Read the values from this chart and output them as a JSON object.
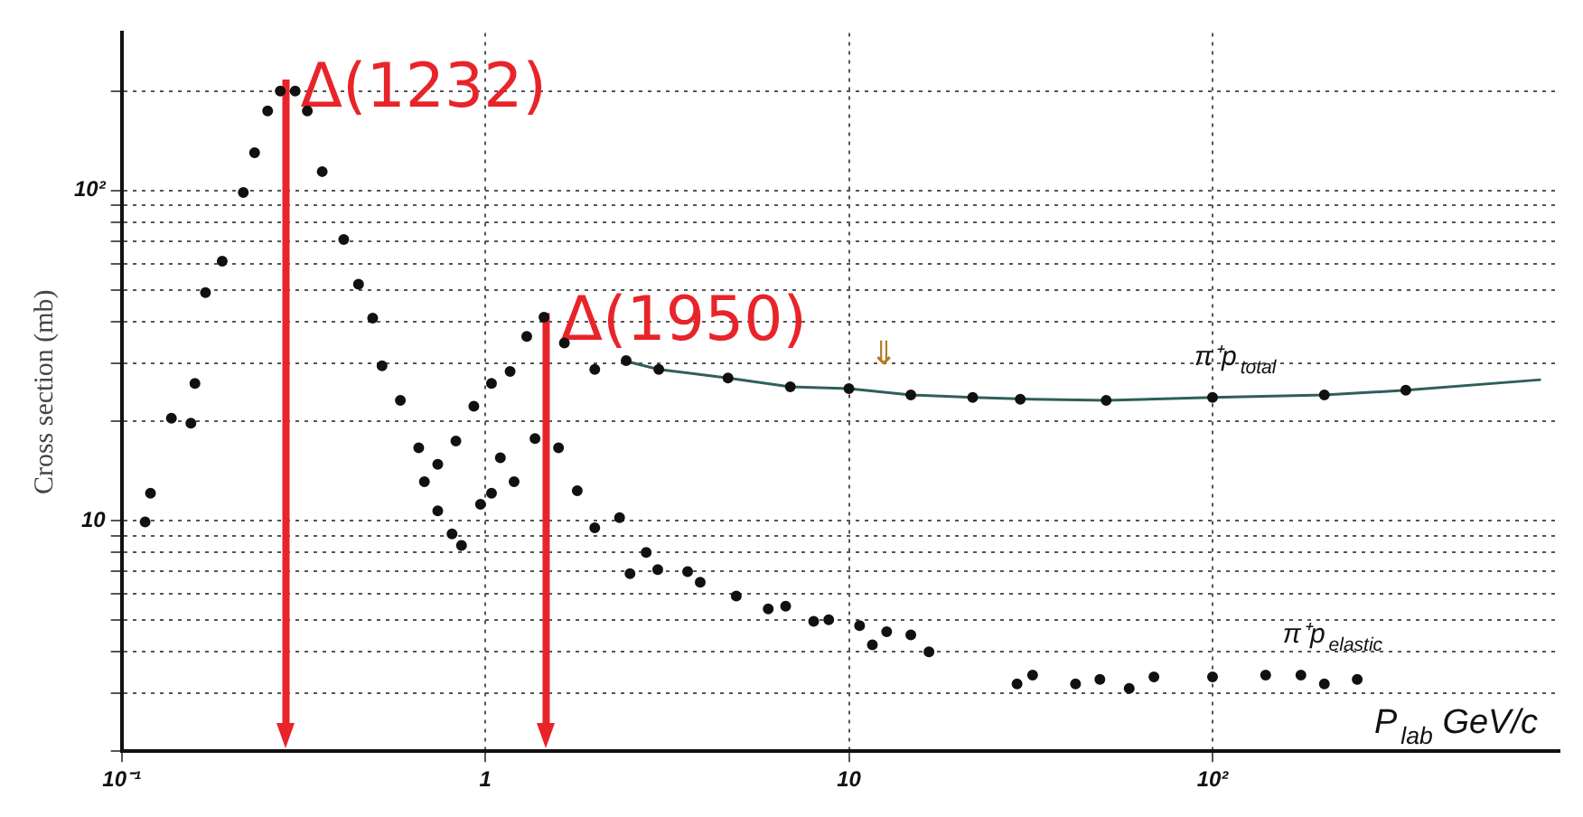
{
  "chart_data": {
    "type": "scatter",
    "ylabel": "Cross section (mb)",
    "xlabel": "P$_{lab}$ GeV/c",
    "log": "xy",
    "grid": true,
    "legend": false,
    "marker": "circle",
    "xlim": [
      0.1,
      900
    ],
    "xticks": [
      {
        "value": 0.1,
        "label": "10⁻¹"
      },
      1,
      10,
      {
        "value": 100,
        "label": "10²"
      }
    ],
    "ylim": [
      2,
      300
    ],
    "yticks": [
      {
        "value": 2,
        "label": null
      },
      {
        "value": 3,
        "label": null
      },
      {
        "value": 4,
        "label": null
      },
      {
        "value": 5,
        "label": null
      },
      {
        "value": 6,
        "label": null
      },
      {
        "value": 7,
        "label": null
      },
      {
        "value": 8,
        "label": null
      },
      {
        "value": 9,
        "label": null
      },
      10,
      {
        "value": 20,
        "label": null
      },
      {
        "value": 30,
        "label": null
      },
      {
        "value": 40,
        "label": null
      },
      {
        "value": 50,
        "label": null
      },
      {
        "value": 60,
        "label": null
      },
      {
        "value": 70,
        "label": null
      },
      {
        "value": 80,
        "label": null
      },
      {
        "value": 90,
        "label": null
      },
      {
        "value": 100,
        "label": "10²"
      },
      {
        "value": 200,
        "label": null
      }
    ],
    "series": [
      {
        "name": "π⁺p$_{total}$",
        "color": "#111111",
        "x": [
          0.116,
          0.12,
          0.137,
          0.155,
          0.159,
          0.17,
          0.189,
          0.216,
          0.232,
          0.252,
          0.273,
          0.3,
          0.324,
          0.356,
          0.408,
          0.448,
          0.49,
          0.52,
          0.584,
          0.656,
          0.74,
          0.83,
          0.93,
          1.04,
          1.17,
          1.3,
          1.45,
          1.65,
          2.0,
          2.44,
          3.0,
          4.65,
          6.9,
          10,
          14.8,
          21.9,
          29.6,
          51,
          100,
          203,
          340
        ],
        "values": [
          9.9,
          12.1,
          20.4,
          19.7,
          26,
          49,
          61,
          98.6,
          130,
          174,
          200,
          200,
          174,
          114,
          71,
          52,
          41,
          29.4,
          23.1,
          16.6,
          14.8,
          17.4,
          22.2,
          26,
          28.3,
          36.1,
          41.3,
          34.5,
          28.7,
          30.5,
          28.7,
          27.0,
          25.4,
          25.1,
          24.0,
          23.6,
          23.3,
          23.1,
          23.6,
          24,
          24.8
        ]
      },
      {
        "type": "line",
        "color": "#2f5f5a",
        "marker": "none",
        "x": [
          2.4,
          3,
          4.65,
          6.9,
          10,
          14.8,
          21.9,
          32,
          51,
          100,
          203,
          340,
          800
        ],
        "values": [
          30.5,
          28.7,
          27,
          25.4,
          25.1,
          24,
          23.6,
          23.3,
          23.1,
          23.6,
          24,
          24.8,
          26.7
        ]
      },
      {
        "name": "π⁺p$_{elastic}$",
        "color": "#111111",
        "x": [
          0.68,
          0.74,
          0.81,
          0.86,
          0.97,
          1.04,
          1.1,
          1.2,
          1.37,
          1.59,
          1.79,
          2.0,
          2.34,
          2.5,
          2.77,
          2.98,
          3.6,
          3.9,
          4.9,
          6.0,
          6.7,
          8.0,
          8.8,
          10.7,
          11.6,
          12.7,
          14.8,
          16.6,
          29,
          32,
          42,
          49,
          59,
          69,
          100,
          140,
          175,
          203,
          250
        ],
        "values": [
          13.1,
          10.7,
          9.1,
          8.4,
          11.2,
          12.1,
          15.5,
          13.1,
          17.7,
          16.6,
          12.3,
          9.5,
          10.2,
          6.9,
          8.0,
          7.1,
          7.0,
          6.5,
          5.9,
          5.4,
          5.5,
          4.95,
          5.0,
          4.8,
          4.2,
          4.6,
          4.5,
          4.0,
          3.2,
          3.4,
          3.2,
          3.3,
          3.1,
          3.36,
          3.36,
          3.4,
          3.4,
          3.2,
          3.3
        ]
      }
    ],
    "ref_lines": [
      {
        "axis": "x",
        "value": 0.283,
        "label": "Δ(1232)",
        "color": "#e8242a"
      },
      {
        "axis": "x",
        "value": 1.47,
        "label": "Δ(1950)",
        "color": "#e8242a"
      }
    ],
    "annotations": [
      "⇓"
    ]
  }
}
